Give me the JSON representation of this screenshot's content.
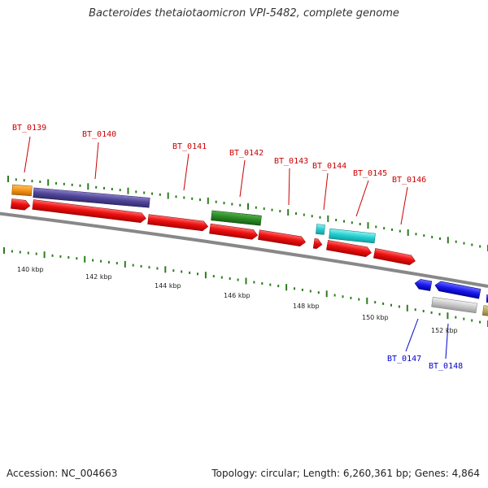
{
  "title": "Bacteroides thetaiotaomicron VPI-5482, complete genome",
  "footer": {
    "accession": "Accession: NC_004663",
    "summary": "Topology: circular; Length: 6,260,361 bp; Genes: 4,864"
  },
  "colors": {
    "gene_label_forward": "#cc0000",
    "gene_label_reverse": "#0000cc",
    "cds_red": "#ee1111",
    "cds_blue": "#1a1aee",
    "backbone": "#888888",
    "tick": "#2e7d1e"
  },
  "scale_labels": [
    "140 kbp",
    "142 kbp",
    "144 kbp",
    "146 kbp",
    "148 kbp",
    "150 kbp",
    "152 kbp"
  ],
  "gene_labels": [
    {
      "text": "BT_0139",
      "strand": "forward"
    },
    {
      "text": "BT_0140",
      "strand": "forward"
    },
    {
      "text": "BT_0141",
      "strand": "forward"
    },
    {
      "text": "BT_0142",
      "strand": "forward"
    },
    {
      "text": "BT_0143",
      "strand": "forward"
    },
    {
      "text": "BT_0144",
      "strand": "forward"
    },
    {
      "text": "BT_0145",
      "strand": "forward"
    },
    {
      "text": "BT_0146",
      "strand": "forward"
    },
    {
      "text": "BT_0147",
      "strand": "reverse"
    },
    {
      "text": "BT_0148",
      "strand": "reverse"
    }
  ]
}
